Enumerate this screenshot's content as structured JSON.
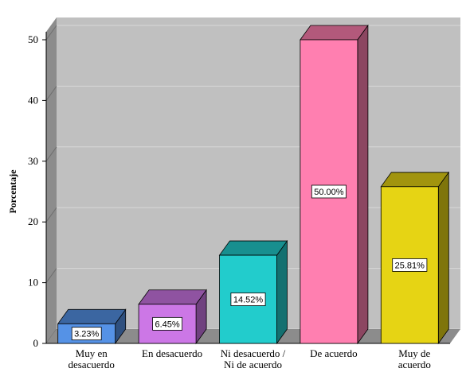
{
  "chart_data": {
    "type": "bar",
    "title": "",
    "xlabel": "",
    "ylabel": "Porcentaje",
    "ylim": [
      0,
      50
    ],
    "yticks": [
      0,
      10,
      20,
      30,
      40,
      50
    ],
    "grid": true,
    "style": "3d",
    "categories": [
      [
        "Muy en",
        "desacuerdo"
      ],
      [
        "En desacuerdo"
      ],
      [
        "Ni desacuerdo /",
        "Ni de acuerdo"
      ],
      [
        "De acuerdo"
      ],
      [
        "Muy de",
        "acuerdo"
      ]
    ],
    "values": [
      3.23,
      6.45,
      14.52,
      50.0,
      25.81
    ],
    "data_labels": [
      "3.23%",
      "6.45%",
      "14.52%",
      "50.00%",
      "25.81%"
    ],
    "colors": [
      "#5592e6",
      "#cc77e6",
      "#22cccc",
      "#ff7fb0",
      "#e6d414"
    ],
    "plot_background": "#c0c0c0",
    "grid_color": "#d8d8d8"
  }
}
